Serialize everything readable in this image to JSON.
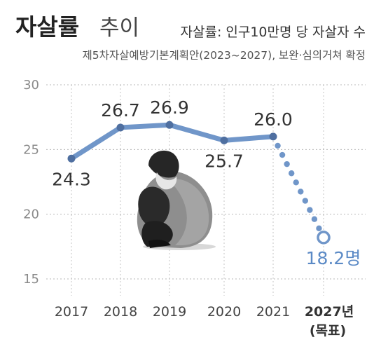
{
  "header": {
    "title_bold": "자살률",
    "title_light": "추이",
    "unit_note": "자살률: 인구10만명 당 자살자 수",
    "source_note": "제5차자살예방기본계획안(2023~2027), 보완·심의거쳐 확정"
  },
  "chart_data": {
    "type": "line",
    "categories": [
      "2017",
      "2018",
      "2019",
      "2020",
      "2021",
      "2027년"
    ],
    "category_note": "(목표)",
    "series": [
      {
        "values": [
          24.3,
          26.7,
          26.9,
          25.7,
          26.0,
          18.2
        ],
        "data_labels": [
          "24.3",
          "26.7",
          "26.9",
          "25.7",
          "26.0",
          "18.2명"
        ],
        "color": "#7096c9",
        "target_style": "dotted",
        "target_index": 5
      }
    ],
    "ylim": [
      15,
      30
    ],
    "yticks": [
      15,
      20,
      25,
      30
    ],
    "ytick_labels": [
      "15",
      "20",
      "25",
      "30"
    ],
    "grid": "horizontal-dotted",
    "title": "",
    "xlabel": "",
    "ylabel": ""
  },
  "illustration": {
    "icon": "crouching-person-icon"
  },
  "colors": {
    "line": "#7096c9",
    "target_text": "#5b8ac6",
    "grid": "#b8b8b8"
  }
}
